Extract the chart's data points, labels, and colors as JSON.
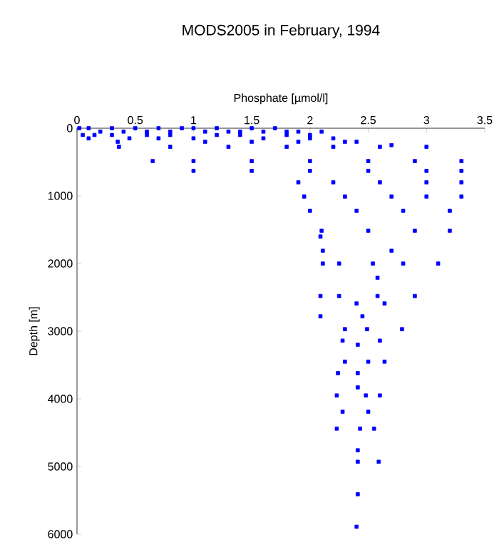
{
  "chart_data": {
    "type": "scatter",
    "title": "MODS2005 in February, 1994",
    "xlabel": "Phosphate [µmol/l]",
    "ylabel": "Depth [m]",
    "x": [
      0.02,
      0.1,
      0.2,
      0.3,
      0.4,
      0.5,
      0.6,
      0.7,
      0.8,
      0.9,
      1.0,
      1.1,
      1.2,
      1.3,
      1.4,
      1.5,
      1.6,
      1.7,
      1.8,
      1.9,
      2.0,
      2.1,
      0.05,
      0.15,
      0.3,
      0.45,
      0.6,
      0.8,
      1.0,
      1.2,
      1.4,
      1.6,
      1.8,
      2.0,
      2.2,
      2.4,
      0.1,
      0.35,
      0.7,
      1.1,
      1.5,
      1.9,
      2.3,
      2.7,
      0.36,
      0.8,
      1.3,
      1.8,
      2.2,
      2.6,
      3.0,
      0.65,
      1.0,
      1.5,
      2.0,
      2.5,
      2.9,
      3.3,
      1.0,
      1.5,
      2.0,
      2.5,
      3.0,
      3.3,
      1.9,
      2.2,
      2.6,
      3.0,
      3.3,
      1.95,
      2.3,
      2.7,
      3.0,
      3.3,
      2.0,
      2.4,
      2.8,
      3.2,
      2.1,
      2.5,
      2.9,
      3.2,
      2.09,
      2.11,
      2.7,
      2.11,
      2.25,
      2.54,
      2.8,
      3.1,
      2.58,
      2.09,
      2.25,
      2.58,
      2.9,
      2.4,
      2.64,
      2.09,
      2.45,
      2.3,
      2.49,
      2.79,
      2.28,
      2.6,
      2.41,
      2.3,
      2.5,
      2.64,
      2.24,
      2.41,
      2.41,
      2.23,
      2.48,
      2.6,
      2.28,
      2.5,
      2.23,
      2.43,
      2.55,
      2.41,
      2.41,
      2.59,
      2.41,
      2.4
    ],
    "values": [
      0,
      0,
      50,
      0,
      50,
      0,
      50,
      0,
      50,
      0,
      0,
      50,
      0,
      50,
      50,
      0,
      50,
      0,
      50,
      50,
      100,
      50,
      100,
      100,
      100,
      150,
      100,
      100,
      150,
      100,
      100,
      150,
      100,
      150,
      150,
      200,
      150,
      200,
      150,
      200,
      200,
      200,
      200,
      250,
      275,
      275,
      275,
      275,
      275,
      275,
      275,
      485,
      485,
      485,
      485,
      485,
      485,
      485,
      630,
      630,
      630,
      630,
      630,
      630,
      800,
      800,
      800,
      800,
      800,
      1010,
      1010,
      1010,
      1010,
      1010,
      1220,
      1220,
      1220,
      1220,
      1515,
      1515,
      1515,
      1515,
      1600,
      1810,
      1810,
      2000,
      2000,
      2000,
      2000,
      2000,
      2210,
      2480,
      2480,
      2480,
      2480,
      2590,
      2590,
      2780,
      2780,
      2970,
      2970,
      2970,
      3140,
      3140,
      3200,
      3450,
      3450,
      3450,
      3620,
      3620,
      3830,
      3950,
      3950,
      3950,
      4190,
      4190,
      4440,
      4440,
      4440,
      4760,
      4930,
      4930,
      5410,
      5890
    ],
    "color": "#0000ff",
    "marker": "square",
    "xlim": [
      0,
      3.5
    ],
    "xticks": [
      0,
      0.5,
      1,
      1.5,
      2,
      2.5,
      3,
      3.5
    ],
    "ylim": [
      6000,
      0
    ],
    "yticks": [
      0,
      1000,
      2000,
      3000,
      4000,
      5000,
      6000
    ]
  }
}
